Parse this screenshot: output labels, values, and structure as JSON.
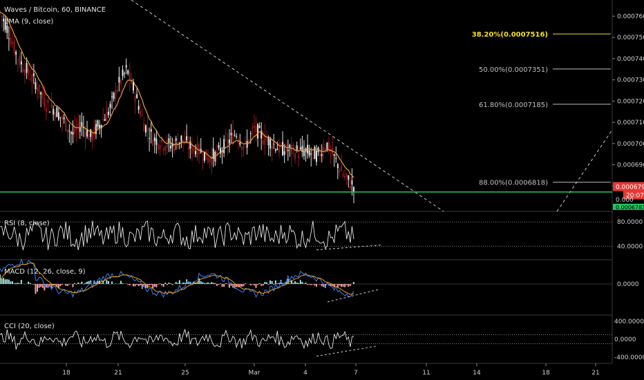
{
  "header": {
    "title": "Waves / Bitcoin, 60, BINANCE",
    "indicator": "EMA (9, close)"
  },
  "colors": {
    "background": "#000000",
    "up": "#e6e6e6",
    "down": "#8b1a1a",
    "ema": "#e8a040",
    "trendline": "#cfcfcf",
    "support": "#22c55e",
    "fib_highlight": "#f5e11a",
    "fib": "#bfbfbf",
    "macd_line": "#3b82f6",
    "signal_line": "#f59e0b",
    "hist_pos": "#9fe3e3",
    "hist_neg": "#f2a3a3",
    "price_tag": "#e53935",
    "green_tag": "#22c55e"
  },
  "chart_data": [
    {
      "type": "line",
      "panel": "price",
      "x_ticks": [
        "18",
        "21",
        "25",
        "Mar",
        "4",
        "7",
        "11",
        "14",
        "18",
        "21"
      ],
      "y_ticks": [
        "0.0007600",
        "0.0007500",
        "0.0007400",
        "0.0007300",
        "0.0007200",
        "0.0007100",
        "0.0007000",
        "0.0006900",
        "0.0006800",
        "0.0006700"
      ],
      "ylim": [
        0.00067,
        0.000765
      ],
      "price_tag": "0.0006796",
      "countdown": "20:07",
      "green_tag": "0.0006783",
      "fib_levels": [
        {
          "label": "38.20%(0.0007516)",
          "value": 0.0007516,
          "highlight": true
        },
        {
          "label": "50.00%(0.0007351)",
          "value": 0.0007351,
          "highlight": false
        },
        {
          "label": "61.80%(0.0007185)",
          "value": 0.0007185,
          "highlight": false
        },
        {
          "label": "88.00%(0.0006818)",
          "value": 0.0006818,
          "highlight": false
        }
      ],
      "support_level": 0.0006772,
      "price_path": [
        [
          0,
          0.000762
        ],
        [
          1,
          0.000752
        ],
        [
          2,
          0.00074
        ],
        [
          3,
          0.000734
        ],
        [
          4,
          0.000728
        ],
        [
          5,
          0.000719
        ],
        [
          6,
          0.000716
        ],
        [
          7,
          0.000711
        ],
        [
          8,
          0.000704
        ],
        [
          9,
          0.000709
        ],
        [
          10,
          0.000703
        ],
        [
          11,
          0.000709
        ],
        [
          12,
          0.000715
        ],
        [
          13,
          0.000727
        ],
        [
          14,
          0.000735
        ],
        [
          15,
          0.000722
        ],
        [
          16,
          0.000708
        ],
        [
          17,
          0.000702
        ],
        [
          18,
          0.0007
        ],
        [
          19,
          0.000699
        ],
        [
          20,
          0.000702
        ],
        [
          21,
          0.000698
        ],
        [
          22,
          0.000697
        ],
        [
          23,
          0.000693
        ],
        [
          24,
          0.000695
        ],
        [
          25,
          0.0007
        ],
        [
          26,
          0.000705
        ],
        [
          27,
          0.000698
        ],
        [
          28,
          0.000707
        ],
        [
          29,
          0.000703
        ],
        [
          30,
          0.0007
        ],
        [
          31,
          0.000697
        ],
        [
          32,
          0.000697
        ],
        [
          33,
          0.000696
        ],
        [
          34,
          0.000696
        ],
        [
          35,
          0.000694
        ],
        [
          36,
          0.0007
        ],
        [
          37,
          0.000692
        ],
        [
          38,
          0.000684
        ],
        [
          39,
          0.00068
        ]
      ]
    },
    {
      "type": "line",
      "panel": "rsi",
      "title": "RSI (8, close)",
      "y_ticks": [
        "80.0000",
        "40.0000"
      ],
      "ylim": [
        20,
        95
      ]
    },
    {
      "type": "bar",
      "panel": "macd",
      "title": "MACD (12, 26, close, 9)",
      "y_ticks": [
        "0.0000"
      ]
    },
    {
      "type": "line",
      "panel": "cci",
      "title": "CCI (20, close)",
      "y_ticks": [
        "400.0000",
        "0.0000",
        "-400.0000"
      ],
      "ylim": [
        -480,
        480
      ]
    }
  ]
}
